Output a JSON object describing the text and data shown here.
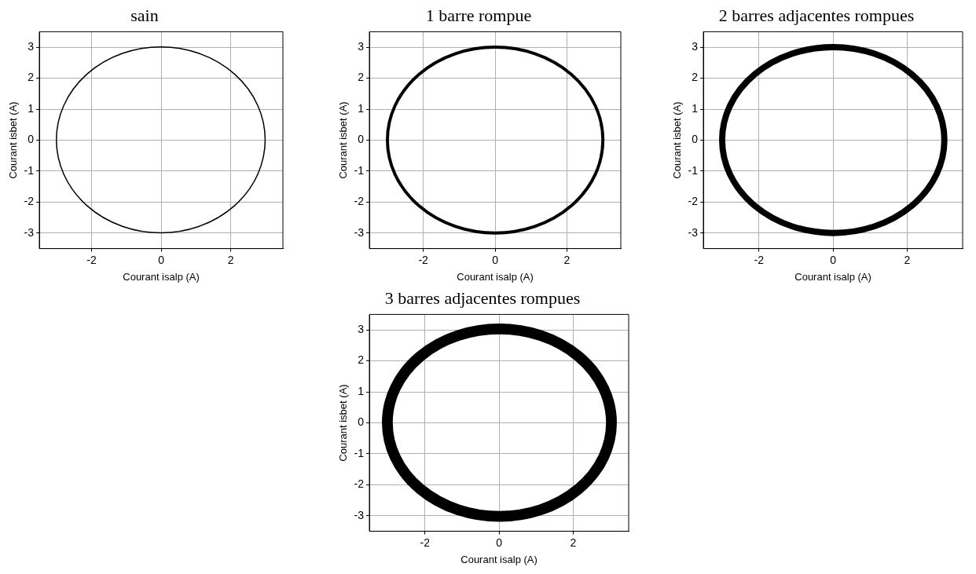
{
  "chart_data": [
    {
      "type": "line",
      "title": "sain",
      "xlabel": "Courant isalp (A)",
      "ylabel": "Courant isbet (A)",
      "xlim": [
        -3.5,
        3.5
      ],
      "ylim": [
        -3.5,
        3.5
      ],
      "xticks": [
        -2,
        0,
        2
      ],
      "yticks": [
        -3,
        -2,
        -1,
        0,
        1,
        2,
        3
      ],
      "grid": true,
      "legend": false
    },
    {
      "type": "line",
      "title": "1 barre rompue",
      "xlabel": "Courant isalp (A)",
      "ylabel": "Courant isbet (A)",
      "xlim": [
        -3.5,
        3.5
      ],
      "ylim": [
        -3.5,
        3.5
      ],
      "xticks": [
        -2,
        0,
        2
      ],
      "yticks": [
        -3,
        -2,
        -1,
        0,
        1,
        2,
        3
      ],
      "grid": true,
      "legend": false
    },
    {
      "type": "line",
      "title": "2 barres adjacentes rompues",
      "xlabel": "Courant isalp (A)",
      "ylabel": "Courant isbet (A)",
      "xlim": [
        -3.5,
        3.5
      ],
      "ylim": [
        -3.5,
        3.5
      ],
      "xticks": [
        -2,
        0,
        2
      ],
      "yticks": [
        -3,
        -2,
        -1,
        0,
        1,
        2,
        3
      ],
      "grid": true,
      "legend": false
    },
    {
      "type": "line",
      "title": "3 barres adjacentes rompues",
      "xlabel": "Courant isalp (A)",
      "ylabel": "Courant isbet (A)",
      "xlim": [
        -3.5,
        3.5
      ],
      "ylim": [
        -3.5,
        3.5
      ],
      "xticks": [
        -2,
        0,
        2
      ],
      "yticks": [
        -3,
        -2,
        -1,
        0,
        1,
        2,
        3
      ],
      "grid": true,
      "legend": false
    }
  ]
}
